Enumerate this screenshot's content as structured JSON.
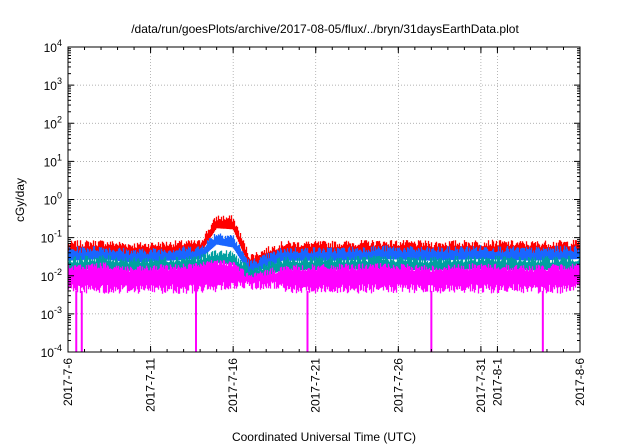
{
  "chart_data": {
    "type": "line",
    "title": "/data/run/goesPlots/archive/2017-08-05/flux/../bryn/31daysEarthData.plot",
    "xlabel": "Coordinated Universal Time (UTC)",
    "ylabel": "cGy/day",
    "yscale": "log",
    "ylim": [
      0.0001,
      10000
    ],
    "y_ticks": [
      {
        "base": "10",
        "exp": "-4",
        "value": 0.0001
      },
      {
        "base": "10",
        "exp": "-3",
        "value": 0.001
      },
      {
        "base": "10",
        "exp": "-2",
        "value": 0.01
      },
      {
        "base": "10",
        "exp": "-1",
        "value": 0.1
      },
      {
        "base": "10",
        "exp": "0",
        "value": 1
      },
      {
        "base": "10",
        "exp": "1",
        "value": 10
      },
      {
        "base": "10",
        "exp": "2",
        "value": 100
      },
      {
        "base": "10",
        "exp": "3",
        "value": 1000
      },
      {
        "base": "10",
        "exp": "4",
        "value": 10000
      }
    ],
    "xlim": [
      "2017-07-06",
      "2017-08-06"
    ],
    "x_ticks": [
      {
        "label": "2017-7-6",
        "date": "2017-07-06"
      },
      {
        "label": "2017-7-11",
        "date": "2017-07-11"
      },
      {
        "label": "2017-7-16",
        "date": "2017-07-16"
      },
      {
        "label": "2017-7-21",
        "date": "2017-07-21"
      },
      {
        "label": "2017-7-26",
        "date": "2017-07-26"
      },
      {
        "label": "2017-7-31",
        "date": "2017-07-31"
      },
      {
        "label": "2017-8-1",
        "date": "2017-08-01"
      },
      {
        "label": "2017-8-6",
        "date": "2017-08-06"
      }
    ],
    "grid": true,
    "legend": "none",
    "series": [
      {
        "color": "#ff0000",
        "x": [
          "2017-07-06",
          "2017-07-08",
          "2017-07-10",
          "2017-07-12",
          "2017-07-14",
          "2017-07-15",
          "2017-07-16",
          "2017-07-17",
          "2017-07-19",
          "2017-07-22",
          "2017-07-25",
          "2017-07-28",
          "2017-07-31",
          "2017-08-03",
          "2017-08-06"
        ],
        "values": [
          0.065,
          0.07,
          0.06,
          0.065,
          0.07,
          0.32,
          0.3,
          0.03,
          0.065,
          0.065,
          0.07,
          0.065,
          0.07,
          0.065,
          0.07
        ]
      },
      {
        "color": "#1a66ff",
        "x": [
          "2017-07-06",
          "2017-07-08",
          "2017-07-10",
          "2017-07-12",
          "2017-07-14",
          "2017-07-15",
          "2017-07-16",
          "2017-07-17",
          "2017-07-19",
          "2017-07-22",
          "2017-07-25",
          "2017-07-28",
          "2017-07-31",
          "2017-08-03",
          "2017-08-06"
        ],
        "values": [
          0.045,
          0.05,
          0.04,
          0.045,
          0.05,
          0.12,
          0.1,
          0.02,
          0.045,
          0.045,
          0.05,
          0.045,
          0.05,
          0.045,
          0.05
        ]
      },
      {
        "color": "#00a0a0",
        "x": [
          "2017-07-06",
          "2017-07-08",
          "2017-07-10",
          "2017-07-12",
          "2017-07-14",
          "2017-07-15",
          "2017-07-16",
          "2017-07-17",
          "2017-07-19",
          "2017-07-22",
          "2017-07-25",
          "2017-07-28",
          "2017-07-31",
          "2017-08-03",
          "2017-08-06"
        ],
        "values": [
          0.025,
          0.028,
          0.024,
          0.026,
          0.028,
          0.04,
          0.035,
          0.013,
          0.025,
          0.026,
          0.027,
          0.025,
          0.027,
          0.025,
          0.027
        ]
      },
      {
        "color": "#ff00ff",
        "x": [
          "2017-07-06",
          "2017-07-08",
          "2017-07-10",
          "2017-07-12",
          "2017-07-14",
          "2017-07-15",
          "2017-07-16",
          "2017-07-17",
          "2017-07-19",
          "2017-07-22",
          "2017-07-25",
          "2017-07-28",
          "2017-07-31",
          "2017-08-03",
          "2017-08-06"
        ],
        "values": [
          0.015,
          0.018,
          0.014,
          0.016,
          0.018,
          0.022,
          0.02,
          0.009,
          0.015,
          0.016,
          0.017,
          0.015,
          0.017,
          0.015,
          0.017
        ],
        "low": [
          0.004,
          0.004,
          0.004,
          0.004,
          0.004,
          0.005,
          0.005,
          0.005,
          0.004,
          0.004,
          0.004,
          0.004,
          0.004,
          0.004,
          0.004
        ],
        "dropouts": [
          "2017-07-06T12:00",
          "2017-07-06T20:00",
          "2017-07-13T18:00",
          "2017-07-20T12:00",
          "2017-07-28T00:00",
          "2017-08-03T18:00"
        ]
      }
    ]
  }
}
